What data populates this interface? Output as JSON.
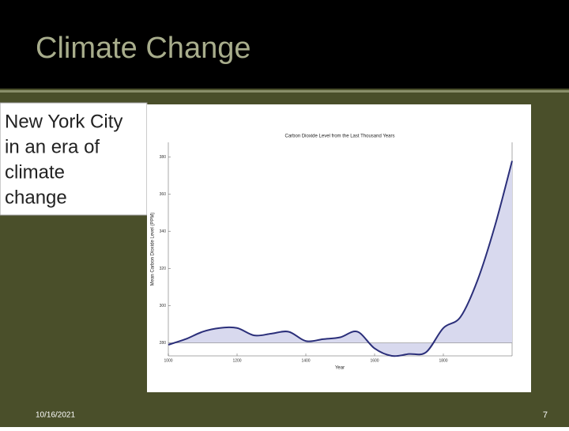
{
  "slide": {
    "title": "Climate Change",
    "caption_lines": [
      "New York City",
      "in an era of",
      "climate",
      "change"
    ],
    "date": "10/16/2021",
    "page": "7"
  },
  "chart_data": {
    "type": "line",
    "title": "Carbon Dioxide Level from the Last Thousand Years",
    "x_label": "Year",
    "y_label": "Mean Carbon Dioxide Level (PPM)",
    "x": [
      1000,
      1050,
      1100,
      1150,
      1200,
      1250,
      1300,
      1350,
      1400,
      1450,
      1500,
      1550,
      1600,
      1650,
      1700,
      1750,
      1800,
      1850,
      1900,
      1950,
      2000
    ],
    "series": [
      {
        "name": "CO2",
        "color": "#2b2f7a",
        "values": [
          279,
          282,
          286,
          288,
          288,
          284,
          285,
          286,
          281,
          282,
          283,
          286,
          277,
          273,
          274,
          275,
          288,
          294,
          314,
          343,
          378
        ]
      }
    ],
    "reference_line": 280,
    "fill_color": "#d8d9ee",
    "xlim": [
      1000,
      2000
    ],
    "xticks": [
      1000,
      1200,
      1400,
      1600,
      1800
    ],
    "ylim": [
      273,
      388
    ],
    "yticks": [
      280,
      300,
      320,
      340,
      360,
      380
    ]
  }
}
